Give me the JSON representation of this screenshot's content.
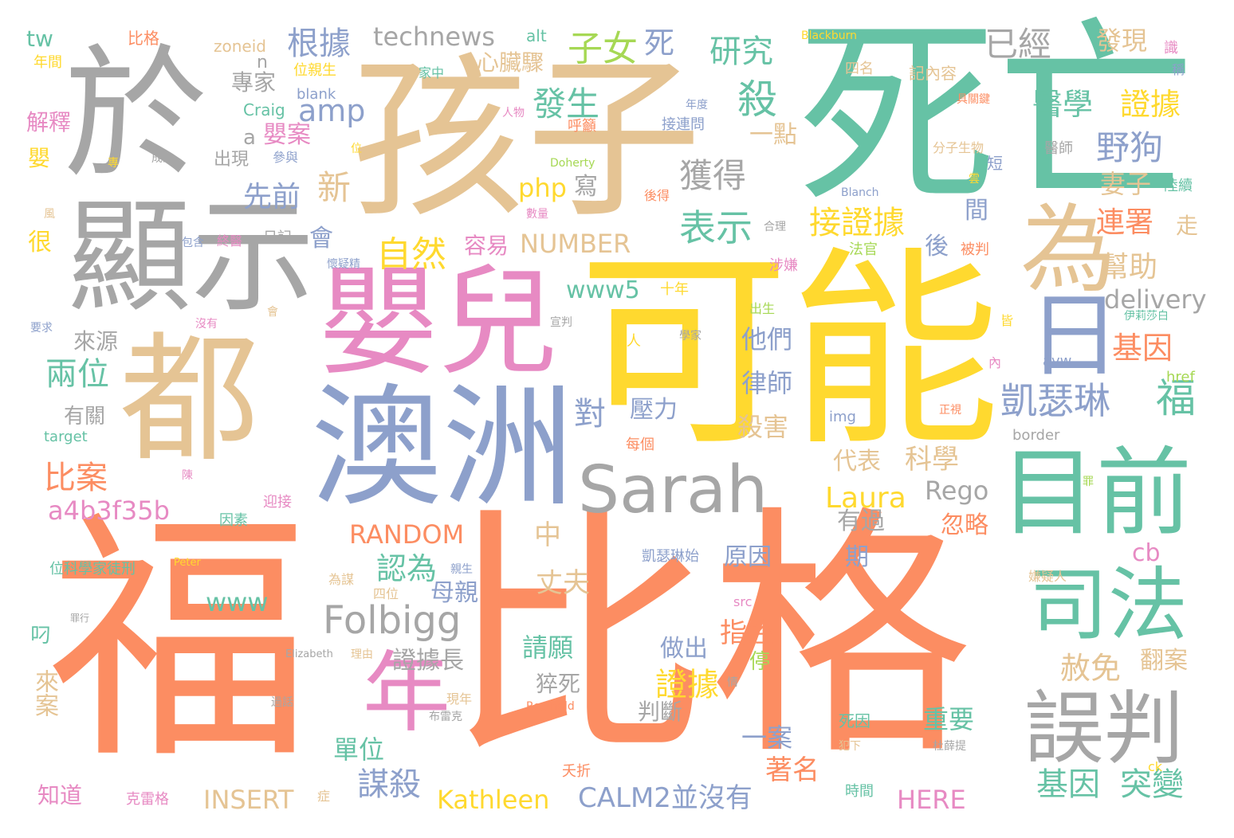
{
  "words": [
    "比格",
    "福",
    "死亡",
    "孩子",
    "於",
    "可能",
    "澳洲",
    "嬰兒",
    "都",
    "顯示",
    "年",
    "目前",
    "司法",
    "誤判",
    "為",
    "日",
    "Sarah",
    "Folbigg",
    "凱瑟琳",
    "福",
    "technews",
    "根據",
    "已經",
    "研究",
    "發現",
    "子女",
    "死",
    "殺",
    "表示",
    "獲得",
    "野狗",
    "醫學",
    "證據",
    "妻子",
    "連署",
    "幫助",
    "基因",
    "自然",
    "接證據",
    "發生",
    "新",
    "先前",
    "amp",
    "嬰案",
    "專家",
    "解釋",
    "比案",
    "兩位",
    "來源",
    "有關",
    "a4b3f35b",
    "RANDOM",
    "Laura",
    "Rego",
    "科學",
    "代表",
    "NUMBER",
    "容易",
    "www5",
    "delivery",
    "他們",
    "律師",
    "壓力",
    "殺害",
    "對",
    "認為",
    "母親",
    "丈夫",
    "www",
    "指控",
    "做出",
    "證據",
    "請願",
    "證據長",
    "猝死",
    "停",
    "赦免",
    "翻案",
    "單位",
    "重要",
    "一案",
    "著名",
    "基因",
    "突變",
    "謀殺",
    "CALM2並沒有",
    "Kathleen",
    "INSERT",
    "HERE",
    "判斷",
    "知道",
    "來案",
    "叼",
    "中",
    "期",
    "原因",
    "有過",
    "忽略",
    "cb",
    "php",
    "寫",
    "一點",
    "心臟驟",
    "會",
    "後",
    "間",
    "走",
    "很",
    "嬰",
    "tw",
    "年間",
    "比格",
    "zoneid",
    "alt",
    "Blackburn",
    "四名",
    "記內容",
    "識",
    "稱",
    "位親生",
    "blank",
    "Craig",
    "家中",
    "人物",
    "年度",
    "接連問",
    "具關鍵",
    "呼籲",
    "醫師",
    "分子生物",
    "專",
    "成立",
    "參與",
    "出現",
    "Doherty",
    "位",
    "短",
    "雲",
    "Blanch",
    "後得",
    "數量",
    "陸續",
    "風",
    "包含",
    "終醫",
    "日記",
    "合理",
    "法官",
    "被判",
    "懷疑精",
    "涉嫌",
    "十年",
    "出生",
    "宣判",
    "非人",
    "學家",
    "伊莉莎白",
    "皆",
    "avw",
    "內",
    "要求",
    "沒有",
    "會",
    "img",
    "href",
    "正視",
    "每個",
    "border",
    "target",
    "陳",
    "罪",
    "因素",
    "迎接",
    "位科學家徒刑",
    "Peter",
    "凱瑟琳始",
    "嫌疑人",
    "為謀",
    "四位",
    "親生",
    "src",
    "罪行",
    "Elizabeth",
    "理由",
    "情",
    "過話",
    "Reginald",
    "布雷克",
    "現年",
    "死因",
    "犯下",
    "杜薛提",
    "夭折",
    "ck",
    "時間",
    "症",
    "克雷格",
    "n",
    "a",
    "出現"
  ]
}
